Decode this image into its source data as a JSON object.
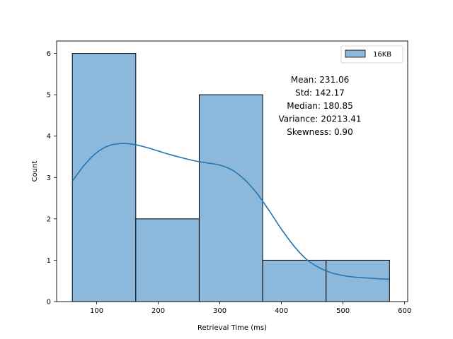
{
  "chart_data": {
    "type": "bar",
    "subtype": "histogram-with-kde",
    "xlabel": "Retrieval Time (ms)",
    "ylabel": "Count",
    "xlim": [
      35,
      605
    ],
    "ylim": [
      0,
      6.3
    ],
    "xticks": [
      100,
      200,
      300,
      400,
      500,
      600
    ],
    "yticks": [
      0,
      1,
      2,
      3,
      4,
      5,
      6
    ],
    "bins": [
      {
        "start": 60.5,
        "end": 163.5,
        "count": 6
      },
      {
        "start": 163.5,
        "end": 266.5,
        "count": 2
      },
      {
        "start": 266.5,
        "end": 369.5,
        "count": 5
      },
      {
        "start": 369.5,
        "end": 472.5,
        "count": 1
      },
      {
        "start": 472.5,
        "end": 575.5,
        "count": 1
      }
    ],
    "series": [
      {
        "name": "16KB",
        "bar_color": "#8bb8db",
        "kde_color": "#1f77b4",
        "kde": {
          "x": [
            60,
            80,
            100,
            120,
            140,
            160,
            180,
            200,
            220,
            240,
            260,
            280,
            300,
            320,
            340,
            360,
            380,
            400,
            420,
            440,
            460,
            480,
            500,
            520,
            540,
            560,
            575
          ],
          "y": [
            2.9,
            3.3,
            3.6,
            3.77,
            3.82,
            3.8,
            3.73,
            3.64,
            3.55,
            3.47,
            3.4,
            3.35,
            3.3,
            3.18,
            2.95,
            2.62,
            2.2,
            1.75,
            1.35,
            1.03,
            0.83,
            0.7,
            0.63,
            0.59,
            0.57,
            0.55,
            0.54
          ]
        }
      }
    ],
    "legend": {
      "position": "top-right",
      "entries": [
        "16KB"
      ]
    },
    "annotations": [
      "Mean: 231.06",
      "Std: 142.17",
      "Median: 180.85",
      "Variance: 20213.41",
      "Skewness: 0.90"
    ],
    "grid": false
  }
}
